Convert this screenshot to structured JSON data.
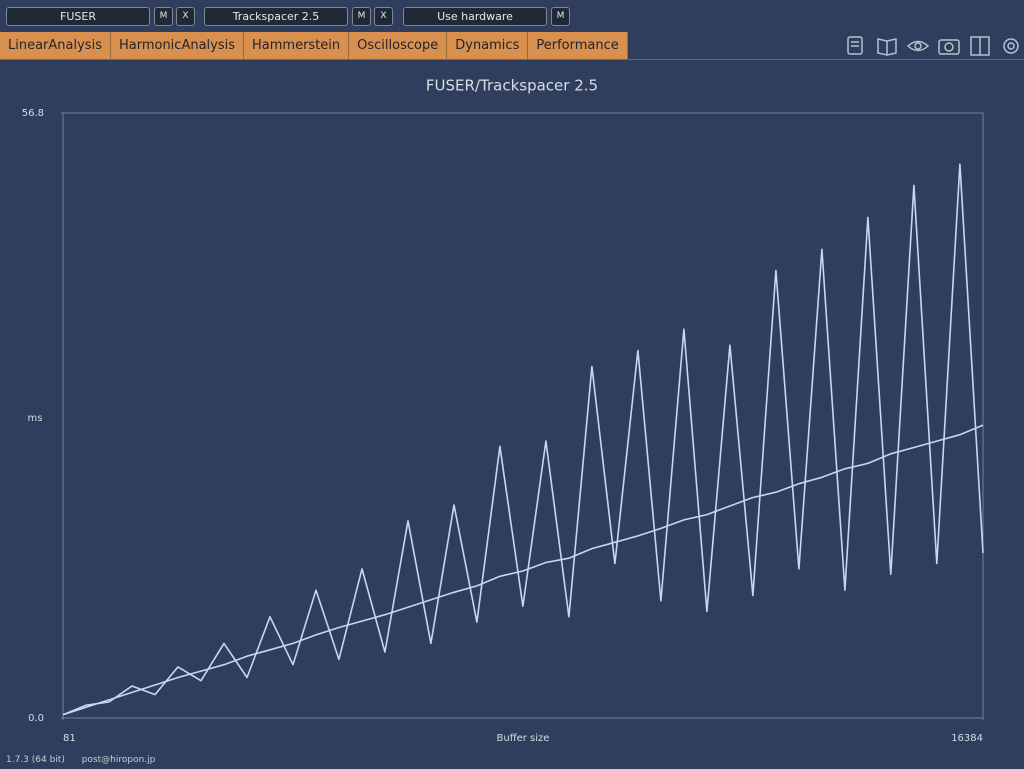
{
  "toolbar": {
    "slots": [
      {
        "label": "FUSER",
        "buttons": [
          "M",
          "X"
        ]
      },
      {
        "label": "Trackspacer 2.5",
        "buttons": [
          "M",
          "X"
        ]
      },
      {
        "label": "Use hardware",
        "buttons": [
          "M"
        ]
      }
    ]
  },
  "tabs": [
    "LinearAnalysis",
    "HarmonicAnalysis",
    "Hammerstein",
    "Oscilloscope",
    "Dynamics",
    "Performance"
  ],
  "chart_data": {
    "type": "line",
    "title": "FUSER/Trackspacer 2.5",
    "xlabel": "Buffer size",
    "ylabel": "ms",
    "xlim": [
      81,
      16384
    ],
    "xticks": [
      81,
      16384
    ],
    "ylim": [
      0,
      56.8
    ],
    "yticks": [
      {
        "value": 0,
        "label": "0.0"
      },
      56.8
    ],
    "x": [
      81,
      489,
      896,
      1304,
      1711,
      2119,
      2526,
      2934,
      3341,
      3749,
      4156,
      4564,
      4971,
      5379,
      5786,
      6194,
      6601,
      7009,
      7416,
      7824,
      8231,
      8639,
      9046,
      9454,
      9861,
      10269,
      10676,
      11084,
      11491,
      11899,
      12306,
      12714,
      13121,
      13529,
      13936,
      14344,
      14751,
      15159,
      15566,
      15974,
      16384
    ],
    "series": [
      {
        "color": "#c9d6f2",
        "values": [
          0.3,
          1.0,
          1.7,
          2.4,
          3.1,
          3.8,
          4.4,
          5.0,
          5.8,
          6.4,
          7.0,
          7.8,
          8.5,
          9.1,
          9.7,
          10.4,
          11.1,
          11.8,
          12.4,
          13.3,
          13.8,
          14.6,
          15.0,
          15.9,
          16.5,
          17.1,
          17.8,
          18.6,
          19.1,
          19.9,
          20.7,
          21.2,
          22.0,
          22.6,
          23.4,
          23.9,
          24.8,
          25.4,
          26.0,
          26.6,
          27.5
        ]
      },
      {
        "color": "#c9d6f2",
        "values": [
          0.3,
          1.2,
          1.5,
          3.0,
          2.2,
          4.8,
          3.5,
          7.0,
          3.8,
          9.5,
          5.0,
          12.0,
          5.5,
          14.0,
          6.2,
          18.5,
          7.0,
          20.0,
          9.0,
          25.5,
          10.5,
          26.0,
          9.5,
          33.0,
          14.5,
          34.5,
          11.0,
          36.5,
          10.0,
          35.0,
          11.5,
          42.0,
          14.0,
          44.0,
          12.0,
          47.0,
          13.5,
          50.0,
          14.5,
          52.0,
          15.5
        ]
      }
    ]
  },
  "footer": {
    "version": "1.7.3 (64 bit)",
    "email": "post@hiropon.jp"
  }
}
